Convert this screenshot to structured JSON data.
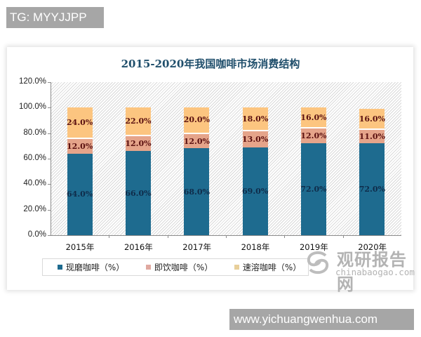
{
  "watermarks": {
    "top": "TG: MYYJJPP",
    "bottom": "www.yichuangwenhua.com",
    "logo_cn": "观研报告网",
    "logo_en": "chinabaogao.com"
  },
  "chart_data": {
    "type": "bar",
    "stacked": true,
    "title": "2015-2020年我国咖啡市场消费结构",
    "xlabel": "",
    "ylabel": "",
    "categories": [
      "2015年",
      "2016年",
      "2017年",
      "2018年",
      "2019年",
      "2020年"
    ],
    "series": [
      {
        "name": "现磨咖啡（%）",
        "color": "#1e6b8f",
        "values": [
          64.0,
          66.0,
          68.0,
          69.0,
          72.0,
          72.0
        ]
      },
      {
        "name": "即饮咖啡（%）",
        "color": "#e5a48a",
        "values": [
          12.0,
          12.0,
          12.0,
          13.0,
          12.0,
          11.0
        ]
      },
      {
        "name": "速溶咖啡（%）",
        "color": "#fcc580",
        "values": [
          24.0,
          22.0,
          20.0,
          18.0,
          16.0,
          16.0
        ]
      }
    ],
    "data_labels": {
      "series0": [
        "64.0%",
        "66.0%",
        "68.0%",
        "69.0%",
        "72.0%",
        "72.0%"
      ],
      "series1": [
        "12.0%",
        "12.0%",
        "12.0%",
        "13.0%",
        "12.0%",
        "11.0%"
      ],
      "series2": [
        "24.0%",
        "22.0%",
        "20.0%",
        "18.0%",
        "16.0%",
        "16.0%"
      ]
    },
    "yticks": [
      "0.0%",
      "20.0%",
      "40.0%",
      "60.0%",
      "80.0%",
      "100.0%",
      "120.0%"
    ],
    "ylim": [
      0,
      120
    ],
    "grid": false,
    "legend_position": "bottom"
  }
}
